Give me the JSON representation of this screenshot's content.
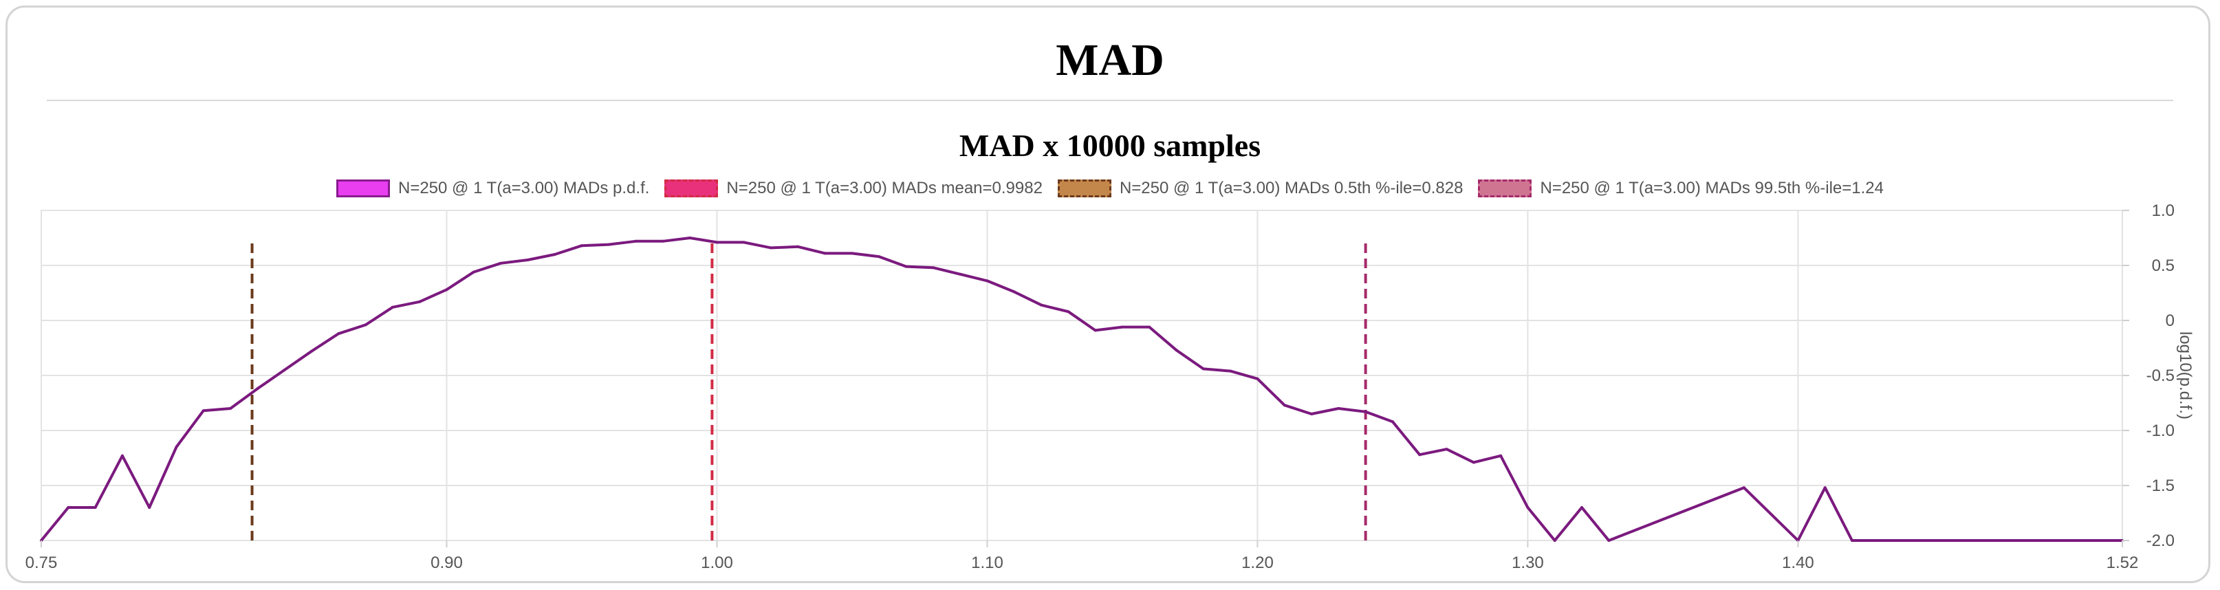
{
  "page": {
    "title": "MAD"
  },
  "chart_data": {
    "type": "line",
    "title": "MAD x 10000 samples",
    "xlabel": "",
    "ylabel": "log10(p.d.f.)",
    "xlim": [
      0.75,
      1.52
    ],
    "ylim": [
      -2.0,
      1.0
    ],
    "x_ticks": [
      0.75,
      0.9,
      1.0,
      1.1,
      1.2,
      1.3,
      1.4,
      1.52
    ],
    "x_tick_labels": [
      "0.75",
      "0.90",
      "1.00",
      "1.10",
      "1.20",
      "1.30",
      "1.40",
      "1.52"
    ],
    "y_ticks": [
      1.0,
      0.5,
      0,
      -0.5,
      -1.0,
      -1.5,
      -2.0
    ],
    "y_tick_labels": [
      "1.0",
      "0.5",
      "0",
      "-0.5",
      "-1.0",
      "-1.5",
      "-2.0"
    ],
    "y_axis_position": "right",
    "grid": true,
    "legend_position": "top-center",
    "series": [
      {
        "name": "N=250 @ 1 T(a=3.00) MADs p.d.f.",
        "kind": "line",
        "color": "#7b1a7e",
        "swatch_fill": "#e83ef0",
        "swatch_border": "#8a1a8e",
        "x": [
          0.75,
          0.76,
          0.77,
          0.78,
          0.79,
          0.8,
          0.81,
          0.82,
          0.83,
          0.84,
          0.85,
          0.86,
          0.87,
          0.88,
          0.89,
          0.9,
          0.91,
          0.92,
          0.93,
          0.94,
          0.95,
          0.96,
          0.97,
          0.98,
          0.99,
          1.0,
          1.01,
          1.02,
          1.03,
          1.04,
          1.05,
          1.06,
          1.07,
          1.08,
          1.09,
          1.1,
          1.11,
          1.12,
          1.13,
          1.14,
          1.15,
          1.16,
          1.17,
          1.18,
          1.19,
          1.2,
          1.21,
          1.22,
          1.23,
          1.24,
          1.25,
          1.26,
          1.27,
          1.28,
          1.29,
          1.3,
          1.31,
          1.32,
          1.33,
          1.38,
          1.4,
          1.41,
          1.42,
          1.52
        ],
        "y": [
          -2.0,
          -1.7,
          -1.7,
          -1.23,
          -1.7,
          -1.15,
          -0.82,
          -0.8,
          -0.62,
          -0.45,
          -0.28,
          -0.12,
          -0.04,
          0.12,
          0.17,
          0.28,
          0.44,
          0.52,
          0.55,
          0.6,
          0.68,
          0.69,
          0.72,
          0.72,
          0.75,
          0.71,
          0.71,
          0.66,
          0.67,
          0.61,
          0.61,
          0.58,
          0.49,
          0.48,
          0.42,
          0.36,
          0.26,
          0.14,
          0.08,
          -0.09,
          -0.06,
          -0.06,
          -0.27,
          -0.44,
          -0.46,
          -0.53,
          -0.77,
          -0.85,
          -0.8,
          -0.83,
          -0.92,
          -1.22,
          -1.17,
          -1.29,
          -1.23,
          -1.7,
          -2.0,
          -1.7,
          -2.0,
          -1.52,
          -2.0,
          -1.52,
          -2.0,
          -2.0
        ]
      },
      {
        "name": "N=250 @ 1 T(a=3.00) MADs mean=0.9982",
        "kind": "vline",
        "x": 0.9982,
        "y_range": [
          -2.0,
          0.72
        ],
        "color": "#d12b45",
        "swatch_fill": "#e8317a",
        "swatch_border": "#d12b45"
      },
      {
        "name": "N=250 @ 1 T(a=3.00) MADs 0.5th %-ile=0.828",
        "kind": "vline",
        "x": 0.828,
        "y_range": [
          -2.0,
          0.72
        ],
        "color": "#6b3a1c",
        "swatch_fill": "#c4874b",
        "swatch_border": "#6b3a1c"
      },
      {
        "name": "N=250 @ 1 T(a=3.00) MADs 99.5th %-ile=1.24",
        "kind": "vline",
        "x": 1.24,
        "y_range": [
          -2.0,
          0.72
        ],
        "color": "#a52a6a",
        "swatch_fill": "#cf7592",
        "swatch_border": "#a52a6a"
      }
    ]
  }
}
